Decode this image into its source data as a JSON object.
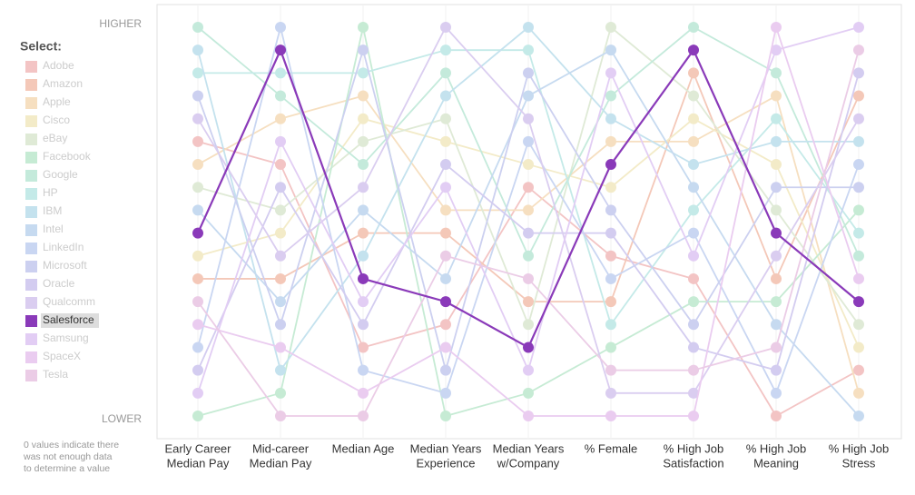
{
  "chart_data": {
    "type": "parallel",
    "legend_title": "Select:",
    "selected": "Salesforce",
    "top_label": "HIGHER",
    "bottom_label": "LOWER",
    "note": [
      "0 values indicate there",
      "was not enough data",
      "to determine a value"
    ],
    "categories": [
      [
        "Early Career",
        "Median Pay"
      ],
      [
        "Mid-career",
        "Median Pay"
      ],
      [
        "Median Age"
      ],
      [
        "Median Years",
        "Experience"
      ],
      [
        "Median Years",
        "w/Company"
      ],
      [
        "% Female"
      ],
      [
        "% High Job",
        "Satisfaction"
      ],
      [
        "% High Job",
        "Meaning"
      ],
      [
        "% High Job",
        "Stress"
      ]
    ],
    "ylim": [
      1,
      18
    ],
    "series": [
      {
        "name": "Adobe",
        "color": "#f3c4c4",
        "values": [
          13,
          12,
          4,
          5,
          11,
          8,
          7,
          1,
          3
        ]
      },
      {
        "name": "Amazon",
        "color": "#f4c8b8",
        "values": [
          7,
          7,
          9,
          9,
          6,
          6,
          16,
          7,
          15
        ]
      },
      {
        "name": "Apple",
        "color": "#f6dfc0",
        "values": [
          12,
          14,
          15,
          10,
          10,
          13,
          13,
          15,
          2
        ]
      },
      {
        "name": "Cisco",
        "color": "#f3ebc8",
        "values": [
          8,
          9,
          14,
          13,
          12,
          11,
          14,
          12,
          4
        ]
      },
      {
        "name": "eBay",
        "color": "#dfead6",
        "values": [
          11,
          10,
          13,
          14,
          5,
          18,
          15,
          10,
          5
        ]
      },
      {
        "name": "Facebook",
        "color": "#c6ebd4",
        "values": [
          1,
          2,
          18,
          1,
          2,
          4,
          6,
          6,
          10
        ]
      },
      {
        "name": "Google",
        "color": "#c4eadb",
        "values": [
          18,
          15,
          12,
          16,
          8,
          15,
          18,
          16,
          8
        ]
      },
      {
        "name": "HP",
        "color": "#c4eae8",
        "values": [
          16,
          16,
          16,
          17,
          17,
          5,
          10,
          14,
          9
        ]
      },
      {
        "name": "IBM",
        "color": "#c4e2ee",
        "values": [
          17,
          3,
          8,
          15,
          18,
          14,
          12,
          13,
          13
        ]
      },
      {
        "name": "Intel",
        "color": "#c6daf0",
        "values": [
          10,
          6,
          10,
          7,
          15,
          17,
          11,
          5,
          1
        ]
      },
      {
        "name": "LinkedIn",
        "color": "#c9d6f2",
        "values": [
          4,
          18,
          3,
          2,
          13,
          7,
          9,
          2,
          12
        ]
      },
      {
        "name": "Microsoft",
        "color": "#ccd0f0",
        "values": [
          15,
          5,
          17,
          3,
          16,
          10,
          5,
          11,
          11
        ]
      },
      {
        "name": "Oracle",
        "color": "#d3ccf0",
        "values": [
          3,
          11,
          5,
          12,
          9,
          9,
          4,
          3,
          16
        ]
      },
      {
        "name": "Qualcomm",
        "color": "#dacdf0",
        "values": [
          14,
          8,
          11,
          18,
          14,
          2,
          2,
          8,
          14
        ]
      },
      {
        "name": "Salesforce",
        "color": "#8a3ab9",
        "values": [
          9,
          17,
          7,
          6,
          4,
          12,
          17,
          9,
          6
        ]
      },
      {
        "name": "Samsung",
        "color": "#e2cdf4",
        "values": [
          2,
          13,
          6,
          11,
          3,
          16,
          8,
          17,
          18
        ]
      },
      {
        "name": "SpaceX",
        "color": "#eaccf0",
        "values": [
          5,
          4,
          2,
          4,
          1,
          1,
          1,
          18,
          7
        ]
      },
      {
        "name": "Tesla",
        "color": "#ebcce6",
        "values": [
          6,
          1,
          1,
          8,
          7,
          3,
          3,
          4,
          17
        ]
      }
    ]
  }
}
